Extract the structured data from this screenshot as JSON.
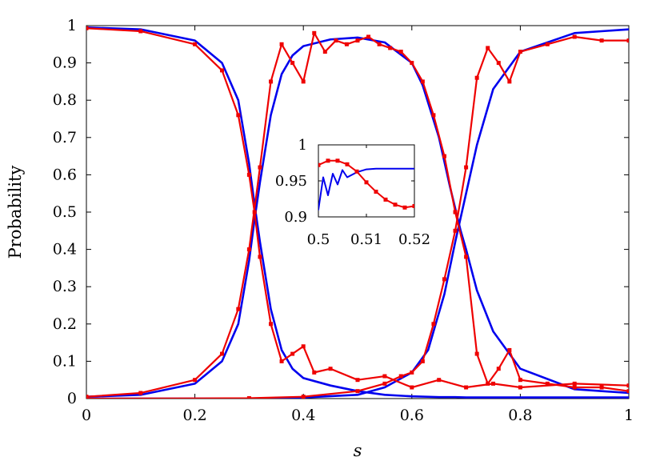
{
  "chart_data": [
    {
      "type": "line",
      "xlabel": "s",
      "ylabel": "Probability",
      "xlim": [
        0,
        1
      ],
      "ylim": [
        0,
        1
      ],
      "xticks": [
        0,
        0.2,
        0.4,
        0.6,
        0.8,
        1
      ],
      "xtick_labels": [
        "0",
        "0.2",
        "0.4",
        "0.6",
        "0.8",
        "1"
      ],
      "yticks": [
        0,
        0.1,
        0.2,
        0.3,
        0.4,
        0.5,
        0.6,
        0.7,
        0.8,
        0.9,
        1
      ],
      "ytick_labels": [
        "0",
        "0.1",
        "0.2",
        "0.3",
        "0.4",
        "0.5",
        "0.6",
        "0.7",
        "0.8",
        "0.9",
        "1"
      ],
      "grid": false,
      "legend": "none",
      "series": [
        {
          "color": "#0000ee",
          "marker": "none",
          "x": [
            0,
            0.1,
            0.2,
            0.25,
            0.28,
            0.3,
            0.31,
            0.32,
            0.34,
            0.36,
            0.38,
            0.4,
            0.45,
            0.5,
            0.55,
            0.6,
            0.65,
            0.68,
            0.7,
            0.72,
            0.75,
            0.8,
            0.9,
            1
          ],
          "y": [
            0.995,
            0.99,
            0.96,
            0.9,
            0.8,
            0.63,
            0.52,
            0.42,
            0.24,
            0.13,
            0.08,
            0.055,
            0.035,
            0.02,
            0.01,
            0.006,
            0.004,
            0.004,
            0.003,
            0.003,
            0.003,
            0.003,
            0.003,
            0.003
          ]
        },
        {
          "color": "#0000ee",
          "marker": "none",
          "x": [
            0,
            0.1,
            0.2,
            0.25,
            0.28,
            0.3,
            0.31,
            0.32,
            0.34,
            0.36,
            0.38,
            0.4,
            0.45,
            0.5,
            0.55,
            0.6,
            0.62,
            0.65,
            0.67,
            0.69,
            0.7,
            0.72,
            0.75,
            0.8,
            0.9,
            1
          ],
          "y": [
            0.005,
            0.01,
            0.04,
            0.1,
            0.2,
            0.37,
            0.48,
            0.58,
            0.76,
            0.87,
            0.92,
            0.945,
            0.963,
            0.968,
            0.955,
            0.9,
            0.84,
            0.7,
            0.57,
            0.45,
            0.4,
            0.29,
            0.18,
            0.08,
            0.025,
            0.015
          ]
        },
        {
          "color": "#0000ee",
          "marker": "none",
          "x": [
            0,
            0.3,
            0.4,
            0.5,
            0.55,
            0.6,
            0.63,
            0.66,
            0.68,
            0.7,
            0.72,
            0.75,
            0.8,
            0.9,
            1
          ],
          "y": [
            0,
            0,
            0.003,
            0.01,
            0.03,
            0.07,
            0.13,
            0.28,
            0.42,
            0.55,
            0.68,
            0.83,
            0.93,
            0.98,
            0.99
          ]
        },
        {
          "color": "#ee0000",
          "marker": "square",
          "x": [
            0,
            0.1,
            0.2,
            0.25,
            0.28,
            0.3,
            0.31,
            0.32,
            0.34,
            0.36,
            0.38,
            0.4,
            0.42,
            0.45,
            0.5,
            0.55,
            0.6,
            0.65,
            0.7,
            0.75,
            0.8,
            0.9,
            1
          ],
          "y": [
            0.993,
            0.985,
            0.95,
            0.88,
            0.76,
            0.6,
            0.5,
            0.38,
            0.2,
            0.1,
            0.12,
            0.14,
            0.07,
            0.08,
            0.05,
            0.06,
            0.03,
            0.05,
            0.03,
            0.04,
            0.03,
            0.04,
            0.035
          ]
        },
        {
          "color": "#ee0000",
          "marker": "square",
          "x": [
            0,
            0.1,
            0.2,
            0.25,
            0.28,
            0.3,
            0.32,
            0.34,
            0.36,
            0.38,
            0.4,
            0.42,
            0.44,
            0.46,
            0.48,
            0.5,
            0.52,
            0.54,
            0.56,
            0.58,
            0.6,
            0.62,
            0.64,
            0.66,
            0.68,
            0.7,
            0.72,
            0.74,
            0.76,
            0.78,
            0.8,
            0.85,
            0.9,
            0.95,
            1
          ],
          "y": [
            0.005,
            0.015,
            0.05,
            0.12,
            0.24,
            0.4,
            0.62,
            0.85,
            0.95,
            0.9,
            0.85,
            0.98,
            0.93,
            0.96,
            0.95,
            0.96,
            0.97,
            0.95,
            0.94,
            0.93,
            0.9,
            0.85,
            0.76,
            0.65,
            0.5,
            0.38,
            0.12,
            0.04,
            0.08,
            0.13,
            0.05,
            0.04,
            0.03,
            0.03,
            0.02
          ]
        },
        {
          "color": "#ee0000",
          "marker": "square",
          "x": [
            0,
            0.3,
            0.4,
            0.5,
            0.55,
            0.58,
            0.6,
            0.62,
            0.64,
            0.66,
            0.68,
            0.7,
            0.72,
            0.74,
            0.76,
            0.78,
            0.8,
            0.85,
            0.9,
            0.95,
            1
          ],
          "y": [
            0,
            0.001,
            0.005,
            0.02,
            0.04,
            0.06,
            0.07,
            0.1,
            0.2,
            0.32,
            0.45,
            0.62,
            0.86,
            0.94,
            0.9,
            0.85,
            0.93,
            0.95,
            0.97,
            0.96,
            0.96
          ]
        }
      ]
    },
    {
      "type": "line",
      "xlabel": "",
      "ylabel": "",
      "xlim": [
        0.5,
        0.52
      ],
      "ylim": [
        0.9,
        1
      ],
      "xticks": [
        0.5,
        0.51,
        0.52
      ],
      "xtick_labels": [
        "0.5",
        "0.51",
        "0.52"
      ],
      "yticks": [
        0.9,
        0.95,
        1
      ],
      "ytick_labels": [
        "0.9",
        "0.95",
        "1"
      ],
      "grid": false,
      "legend": "none",
      "series": [
        {
          "color": "#0000ee",
          "marker": "none",
          "x": [
            0.5,
            0.501,
            0.502,
            0.503,
            0.504,
            0.505,
            0.506,
            0.508,
            0.51,
            0.512,
            0.515,
            0.52
          ],
          "y": [
            0.91,
            0.955,
            0.93,
            0.96,
            0.945,
            0.965,
            0.955,
            0.962,
            0.966,
            0.967,
            0.967,
            0.967
          ]
        },
        {
          "color": "#ee0000",
          "marker": "square",
          "x": [
            0.5,
            0.502,
            0.504,
            0.506,
            0.508,
            0.51,
            0.512,
            0.514,
            0.516,
            0.518,
            0.52
          ],
          "y": [
            0.972,
            0.978,
            0.978,
            0.973,
            0.963,
            0.948,
            0.935,
            0.924,
            0.917,
            0.913,
            0.915
          ]
        }
      ]
    }
  ]
}
